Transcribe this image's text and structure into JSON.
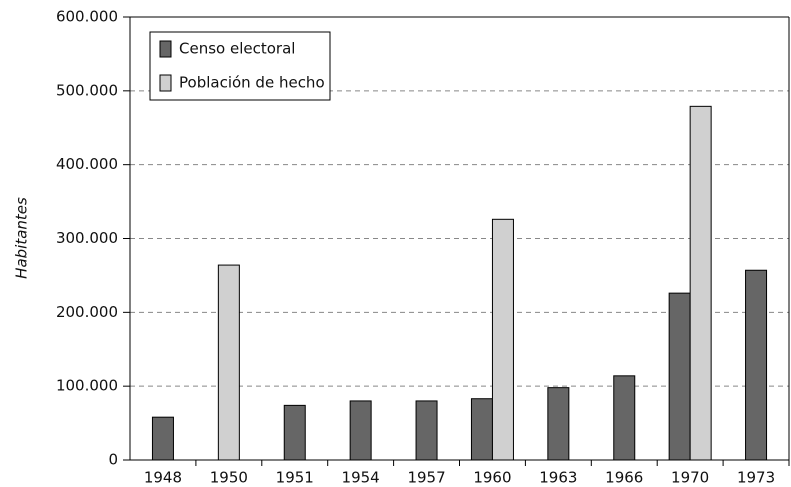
{
  "chart_data": {
    "type": "bar",
    "y_label": "Habitantes",
    "categories": [
      "1948",
      "1950",
      "1951",
      "1954",
      "1957",
      "1960",
      "1963",
      "1966",
      "1970",
      "1973"
    ],
    "series": [
      {
        "name": "Censo electoral",
        "color": "#666666",
        "values": [
          58000,
          null,
          74000,
          80000,
          80000,
          83000,
          98000,
          114000,
          226000,
          257000
        ]
      },
      {
        "name": "Población de hecho",
        "color": "#d0d0d0",
        "values": [
          null,
          264000,
          null,
          null,
          null,
          326000,
          null,
          null,
          479000,
          null
        ]
      }
    ],
    "ylim": [
      0,
      600000
    ],
    "yticks": [
      0,
      {
        "value": 100000,
        "label": "100.000"
      },
      {
        "value": 200000,
        "label": "200.000"
      },
      {
        "value": 300000,
        "label": "300.000"
      },
      {
        "value": 400000,
        "label": "400.000"
      },
      {
        "value": 500000,
        "label": "500.000"
      },
      {
        "value": 600000,
        "label": "600.000"
      }
    ],
    "grid": true,
    "legend": "upper left"
  }
}
